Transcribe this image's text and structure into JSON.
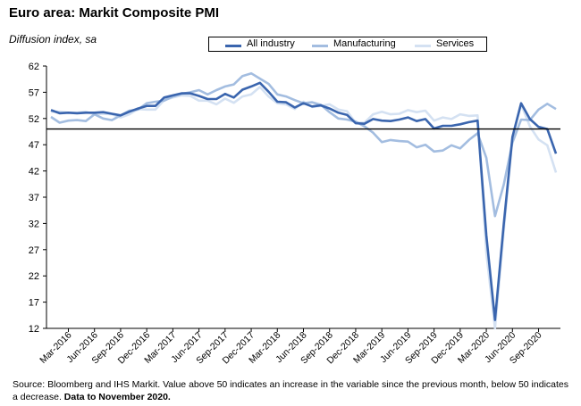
{
  "title": "Euro area: Markit Composite PMI",
  "subtitle": "Diffusion index, sa",
  "footnote": {
    "text": "Source: Bloomberg and IHS Markit.  Value above 50 indicates an increase in the variable since the previous month, below 50 indicates a decrease.",
    "bold": "Data to November 2020."
  },
  "colors": {
    "all_industry": "#3a65ae",
    "manufacturing": "#a3bde0",
    "services": "#d4e1f2",
    "axis": "#000000"
  },
  "chart_data": {
    "type": "line",
    "title": "Euro area: Markit Composite PMI",
    "ylabel": "Diffusion index, sa",
    "ylim": [
      12,
      62
    ],
    "yticks": [
      12,
      17,
      22,
      27,
      32,
      37,
      42,
      47,
      52,
      57,
      62
    ],
    "reference_line": 50,
    "grid": false,
    "legend": "top-center",
    "x": [
      "2016-01",
      "2016-02",
      "2016-03",
      "2016-04",
      "2016-05",
      "2016-06",
      "2016-07",
      "2016-08",
      "2016-09",
      "2016-10",
      "2016-11",
      "2016-12",
      "2017-01",
      "2017-02",
      "2017-03",
      "2017-04",
      "2017-05",
      "2017-06",
      "2017-07",
      "2017-08",
      "2017-09",
      "2017-10",
      "2017-11",
      "2017-12",
      "2018-01",
      "2018-02",
      "2018-03",
      "2018-04",
      "2018-05",
      "2018-06",
      "2018-07",
      "2018-08",
      "2018-09",
      "2018-10",
      "2018-11",
      "2018-12",
      "2019-01",
      "2019-02",
      "2019-03",
      "2019-04",
      "2019-05",
      "2019-06",
      "2019-07",
      "2019-08",
      "2019-09",
      "2019-10",
      "2019-11",
      "2019-12",
      "2020-01",
      "2020-02",
      "2020-03",
      "2020-04",
      "2020-05",
      "2020-06",
      "2020-07",
      "2020-08",
      "2020-09",
      "2020-10",
      "2020-11"
    ],
    "xtick_labels": [
      "Mar-2016",
      "Jun-2016",
      "Sep-2016",
      "Dec-2016",
      "Mar-2017",
      "Jun-2017",
      "Sep-2017",
      "Dec-2017",
      "Mar-2018",
      "Jun-2018",
      "Sep-2018",
      "Dec-2018",
      "Mar-2019",
      "Jun-2019",
      "Sep-2019",
      "Dec-2019",
      "Mar-2020",
      "Jun-2020",
      "Sep-2020"
    ],
    "xtick_index": [
      2,
      5,
      8,
      11,
      14,
      17,
      20,
      23,
      26,
      29,
      32,
      35,
      38,
      41,
      44,
      47,
      50,
      53,
      56
    ],
    "series": [
      {
        "name": "All industry",
        "key": "all_industry",
        "values": [
          53.6,
          53.0,
          53.1,
          53.0,
          53.1,
          53.1,
          53.2,
          52.9,
          52.6,
          53.3,
          53.9,
          54.4,
          54.4,
          56.0,
          56.4,
          56.8,
          56.8,
          56.3,
          55.7,
          55.7,
          56.7,
          56.0,
          57.5,
          58.1,
          58.8,
          57.1,
          55.2,
          55.1,
          54.1,
          54.9,
          54.3,
          54.5,
          53.9,
          53.1,
          52.7,
          51.1,
          51.0,
          51.9,
          51.6,
          51.5,
          51.8,
          52.2,
          51.5,
          51.9,
          50.1,
          50.6,
          50.6,
          50.9,
          51.3,
          51.6,
          29.7,
          13.6,
          31.9,
          48.5,
          54.9,
          51.9,
          50.4,
          50.0,
          45.3
        ]
      },
      {
        "name": "Manufacturing",
        "key": "manufacturing",
        "values": [
          52.3,
          51.2,
          51.6,
          51.7,
          51.5,
          52.8,
          52.0,
          51.7,
          52.6,
          53.5,
          53.7,
          54.9,
          55.2,
          55.4,
          56.2,
          56.7,
          57.0,
          57.4,
          56.6,
          57.4,
          58.1,
          58.5,
          60.1,
          60.6,
          59.6,
          58.6,
          56.6,
          56.2,
          55.5,
          54.9,
          55.1,
          54.6,
          53.2,
          52.0,
          51.8,
          51.4,
          50.5,
          49.3,
          47.5,
          47.9,
          47.7,
          47.6,
          46.5,
          47.0,
          45.7,
          45.9,
          46.9,
          46.3,
          47.9,
          49.2,
          44.5,
          33.4,
          39.4,
          47.4,
          51.8,
          51.7,
          53.7,
          54.8,
          53.8
        ]
      },
      {
        "name": "Services",
        "key": "services",
        "values": [
          53.3,
          53.3,
          53.1,
          53.1,
          53.3,
          52.8,
          52.9,
          52.8,
          52.2,
          52.8,
          53.8,
          53.7,
          53.7,
          55.5,
          56.0,
          56.4,
          56.3,
          55.4,
          55.4,
          54.7,
          55.8,
          55.0,
          56.2,
          56.6,
          58.0,
          56.2,
          54.9,
          54.7,
          53.8,
          55.2,
          54.2,
          54.4,
          54.7,
          53.7,
          53.4,
          51.2,
          51.2,
          52.8,
          53.3,
          52.8,
          52.9,
          53.6,
          53.2,
          53.5,
          51.6,
          52.2,
          51.9,
          52.8,
          52.5,
          52.6,
          26.4,
          12.0,
          30.5,
          48.3,
          54.7,
          50.5,
          48.0,
          46.9,
          41.7
        ]
      }
    ]
  }
}
